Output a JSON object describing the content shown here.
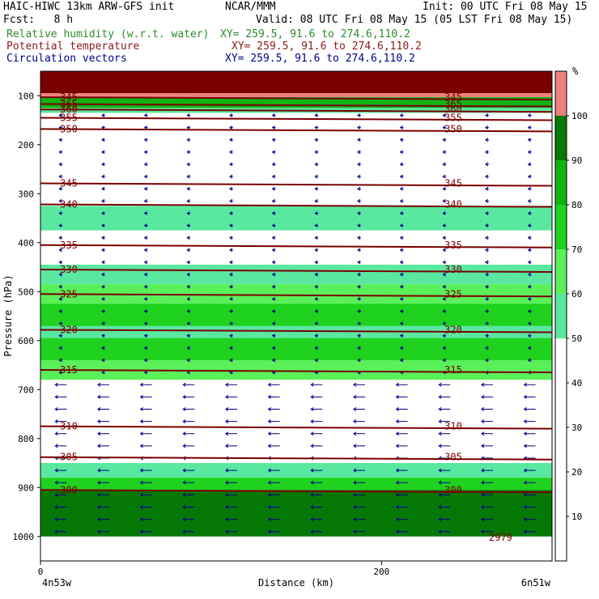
{
  "header": {
    "title": "HAIC-HIWC 13km ARW-GFS init",
    "org": "NCAR/MMM",
    "init": "Init: 00 UTC Fri 08 May 15",
    "fcst": "Fcst:   8 h",
    "valid": "Valid: 08 UTC Fri 08 May 15 (05 LST Fri 08 May 15)",
    "fields": [
      {
        "name": "Relative humidity (w.r.t. water)",
        "xy": "XY= 259.5, 91.6 to 274.6,110.2",
        "color": "#2e8b2e"
      },
      {
        "name": "Potential temperature",
        "xy": "XY= 259.5, 91.6 to 274.6,110.2",
        "color": "#8b1a1a"
      },
      {
        "name": "Circulation vectors",
        "xy": "XY= 259.5, 91.6 to 274.6,110.2",
        "color": "#00008b"
      }
    ]
  },
  "chart_data": {
    "type": "heatmap",
    "xlabel": "Distance (km)",
    "ylabel": "Pressure (hPa)",
    "x_ticks": [
      0,
      200
    ],
    "y_ticks": [
      100,
      200,
      300,
      400,
      500,
      600,
      700,
      800,
      900,
      1000
    ],
    "xlim": [
      0,
      300
    ],
    "ylim": [
      1050,
      50
    ],
    "x_endpoints": {
      "left": "4n53w",
      "right": "6n51w"
    },
    "colorbar": {
      "unit": "%",
      "ticks": [
        10,
        20,
        30,
        40,
        50,
        60,
        70,
        80,
        90,
        100
      ],
      "bins": [
        {
          "lo": 0,
          "hi": 50,
          "color": "#ffffff"
        },
        {
          "lo": 50,
          "hi": 60,
          "color": "#5ae8a0"
        },
        {
          "lo": 60,
          "hi": 70,
          "color": "#5af05a"
        },
        {
          "lo": 70,
          "hi": 80,
          "color": "#1ed21e"
        },
        {
          "lo": 80,
          "hi": 90,
          "color": "#10b410"
        },
        {
          "lo": 90,
          "hi": 100,
          "color": "#057805"
        },
        {
          "lo": 100,
          "hi": 110,
          "color": "#f08080"
        }
      ]
    },
    "rh_bands": [
      {
        "p_top": 50,
        "p_bot": 95,
        "rh": 100,
        "color": "#7a0000"
      },
      {
        "p_top": 95,
        "p_bot": 103,
        "rh": 105,
        "color": "#f08080"
      },
      {
        "p_top": 103,
        "p_bot": 125,
        "rh": 80,
        "color": "#10b410"
      },
      {
        "p_top": 125,
        "p_bot": 135,
        "rh": 55,
        "color": "#5ae8a0"
      },
      {
        "p_top": 325,
        "p_bot": 375,
        "rh": 55,
        "color": "#5ae8a0"
      },
      {
        "p_top": 445,
        "p_bot": 485,
        "rh": 55,
        "color": "#5ae8a0"
      },
      {
        "p_top": 485,
        "p_bot": 680,
        "rh": 65,
        "color": "#5af05a"
      },
      {
        "p_top": 525,
        "p_bot": 640,
        "rh": 75,
        "color": "#1ed21e"
      },
      {
        "p_top": 570,
        "p_bot": 595,
        "rh": 55,
        "color": "#5ae8a0"
      },
      {
        "p_top": 850,
        "p_bot": 880,
        "rh": 55,
        "color": "#5ae8a0"
      },
      {
        "p_top": 880,
        "p_bot": 905,
        "rh": 75,
        "color": "#1ed21e"
      },
      {
        "p_top": 905,
        "p_bot": 1000,
        "rh": 95,
        "color": "#057805"
      }
    ],
    "theta_contours": [
      {
        "label": "345",
        "p": 279
      },
      {
        "label": "340",
        "p": 322
      },
      {
        "label": "335",
        "p": 405
      },
      {
        "label": "330",
        "p": 455
      },
      {
        "label": "325",
        "p": 505
      },
      {
        "label": "320",
        "p": 578
      },
      {
        "label": "315",
        "p": 660
      },
      {
        "label": "310",
        "p": 775
      },
      {
        "label": "305",
        "p": 838
      },
      {
        "label": "300",
        "p": 905
      },
      {
        "label": "350",
        "p": 168
      },
      {
        "label": "355",
        "p": 145
      },
      {
        "label": "360",
        "p": 128
      },
      {
        "label": "365",
        "p": 117
      },
      {
        "label": "345",
        "p": 103
      }
    ],
    "annotations": [
      "2979"
    ]
  }
}
